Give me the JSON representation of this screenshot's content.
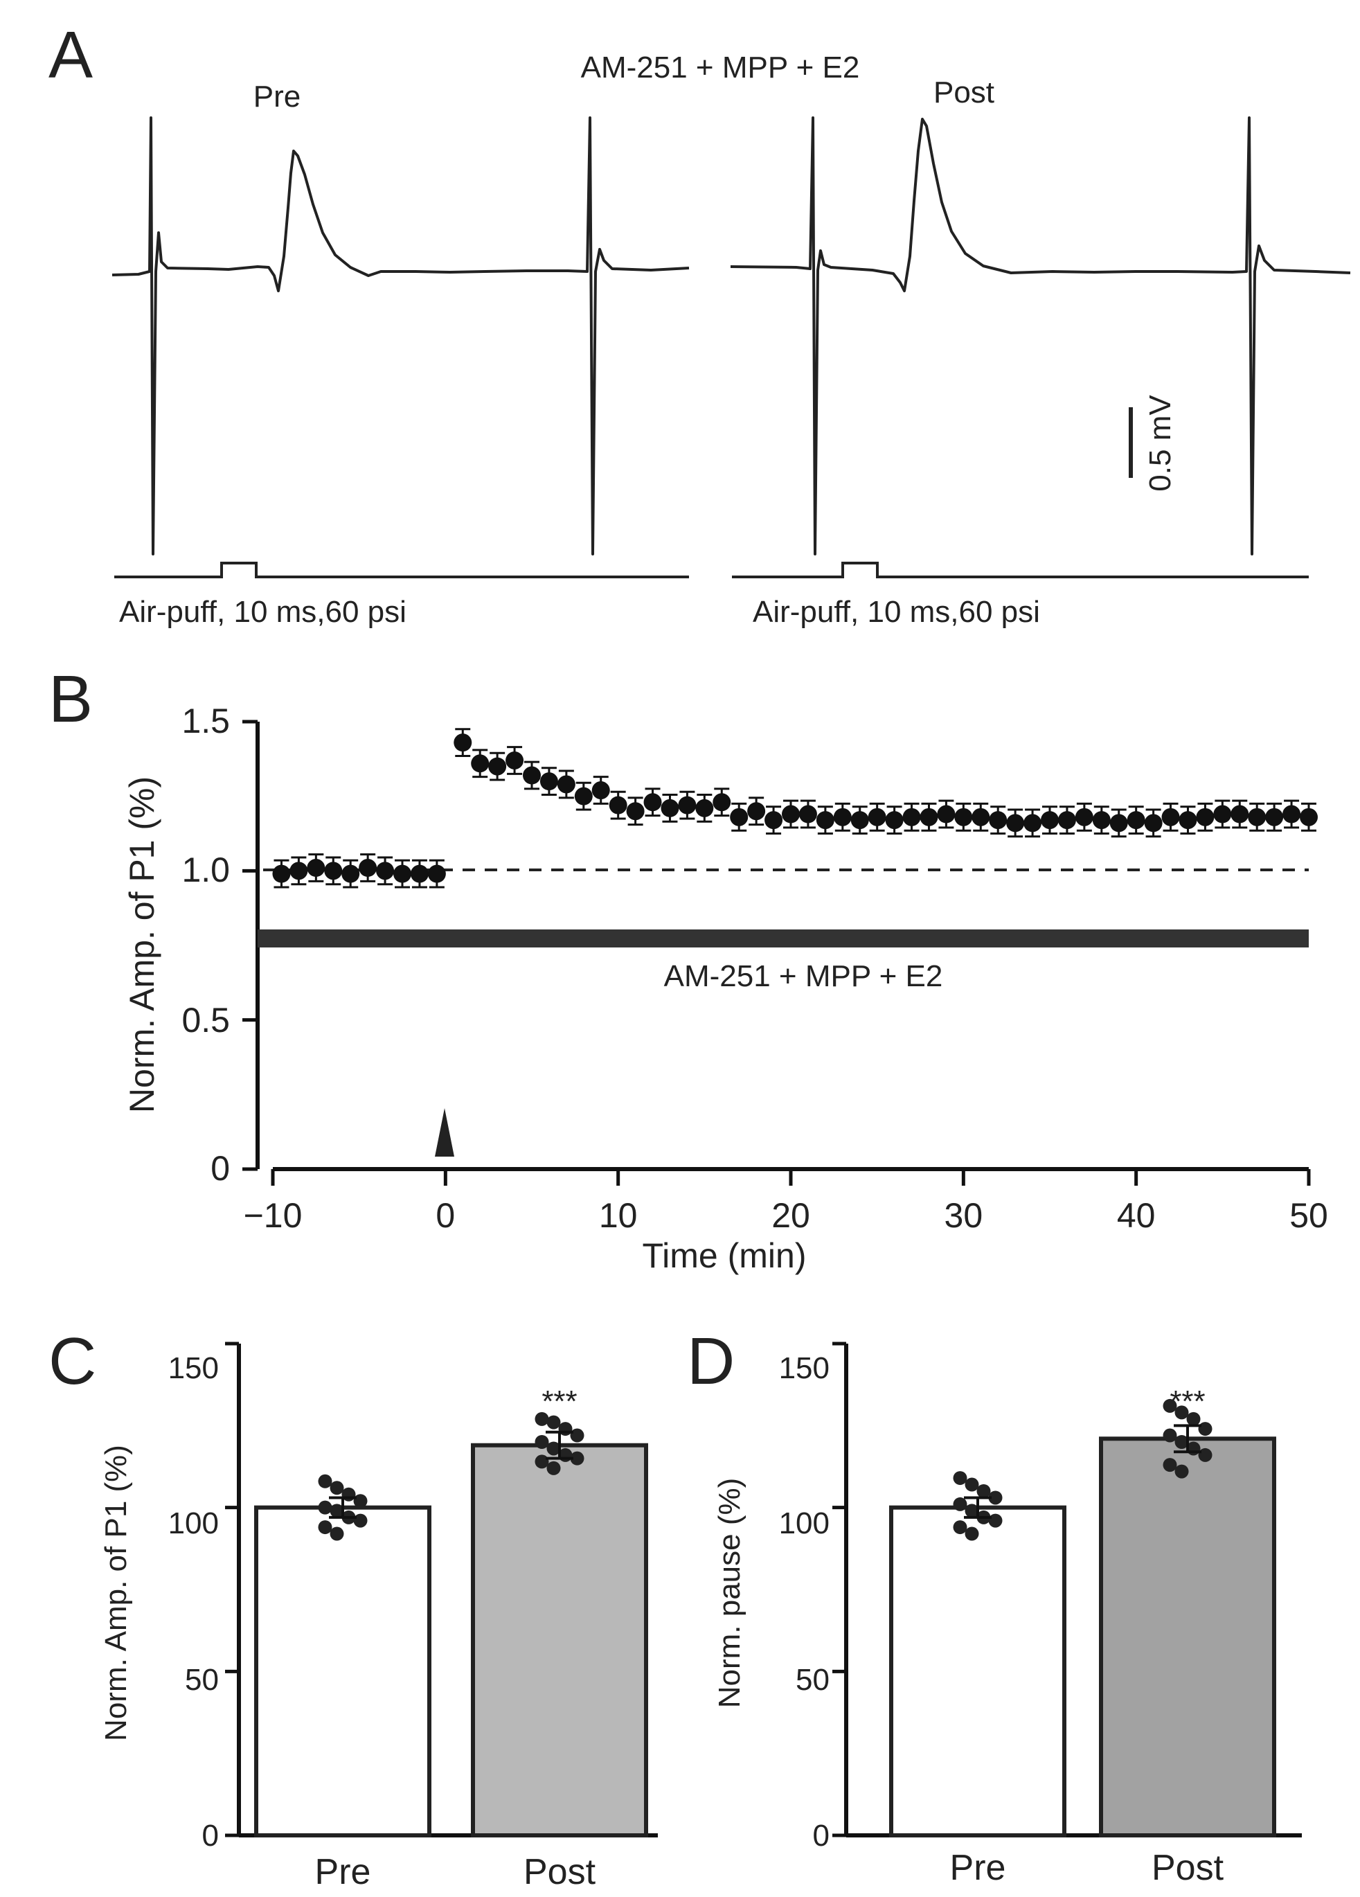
{
  "figure": {
    "panel_letters": [
      "A",
      "B",
      "C",
      "D"
    ]
  },
  "chart_data": [
    {
      "panel": "A",
      "type": "line",
      "title": "AM-251 + MPP + E2",
      "traces": [
        {
          "label": "Pre",
          "stimulus": "Air-puff, 10 ms,60 psi"
        },
        {
          "label": "Post",
          "stimulus": "Air-puff, 10 ms,60 psi"
        }
      ],
      "scale_bar": {
        "label": "0.5 mV",
        "value": 0.5,
        "unit": "mV"
      }
    },
    {
      "panel": "B",
      "type": "scatter",
      "xlabel": "Time (min)",
      "ylabel": "Norm. Amp. of P1 (%)",
      "xlim": [
        -10,
        50
      ],
      "ylim": [
        0,
        1.5
      ],
      "xticks": [
        -10,
        0,
        10,
        20,
        30,
        40,
        50
      ],
      "xtick_labels": [
        "−10",
        "0",
        "10",
        "20",
        "30",
        "40",
        "50"
      ],
      "yticks": [
        0,
        0.5,
        1.0,
        1.5
      ],
      "ytick_labels": [
        "0",
        "0.5",
        "1.0",
        "1.5"
      ],
      "reference_line": {
        "y": 1.0,
        "style": "dashed"
      },
      "drug_bar": {
        "label": "AM-251 + MPP + E2",
        "x_start": -10,
        "x_end": 50
      },
      "marker": {
        "x": 0,
        "label": "arrowhead"
      },
      "series": [
        {
          "name": "Norm. Amp. of P1",
          "x": [
            -9.5,
            -8.5,
            -7.5,
            -6.5,
            -5.5,
            -4.5,
            -3.5,
            -2.5,
            -1.5,
            -0.5,
            1,
            2,
            3,
            4,
            5,
            6,
            7,
            8,
            9,
            10,
            11,
            12,
            13,
            14,
            15,
            16,
            17,
            18,
            19,
            20,
            21,
            22,
            23,
            24,
            25,
            26,
            27,
            28,
            29,
            30,
            31,
            32,
            33,
            34,
            35,
            36,
            37,
            38,
            39,
            40,
            41,
            42,
            43,
            44,
            45,
            46,
            47,
            48,
            49,
            50
          ],
          "y": [
            0.99,
            1.0,
            1.01,
            1.0,
            0.99,
            1.01,
            1.0,
            0.99,
            0.99,
            0.99,
            1.43,
            1.36,
            1.35,
            1.37,
            1.32,
            1.3,
            1.29,
            1.25,
            1.27,
            1.22,
            1.2,
            1.23,
            1.21,
            1.22,
            1.21,
            1.23,
            1.18,
            1.2,
            1.17,
            1.19,
            1.19,
            1.17,
            1.18,
            1.17,
            1.18,
            1.17,
            1.18,
            1.18,
            1.19,
            1.18,
            1.18,
            1.17,
            1.16,
            1.16,
            1.17,
            1.17,
            1.18,
            1.17,
            1.16,
            1.17,
            1.16,
            1.18,
            1.17,
            1.18,
            1.19,
            1.19,
            1.18,
            1.18,
            1.19,
            1.18
          ],
          "err": 0.045
        }
      ]
    },
    {
      "panel": "C",
      "type": "bar",
      "categories": [
        "Pre",
        "Post"
      ],
      "values": [
        100,
        119
      ],
      "errors": [
        3,
        4
      ],
      "colors": [
        "#ffffff",
        "#b8b8b8"
      ],
      "ylabel": "Norm. Amp. of P1 (%)",
      "ylim": [
        0,
        150
      ],
      "yticks": [
        0,
        50,
        100,
        150
      ],
      "ytick_labels": [
        "0",
        "50",
        "100",
        "150"
      ],
      "significance": [
        "",
        "***"
      ],
      "points": [
        [
          108,
          106,
          104,
          102,
          100,
          99,
          97,
          96,
          94,
          92
        ],
        [
          127,
          126,
          124,
          122,
          120,
          118,
          116,
          115,
          114,
          112
        ]
      ]
    },
    {
      "panel": "D",
      "type": "bar",
      "categories": [
        "Pre",
        "Post"
      ],
      "values": [
        100,
        121
      ],
      "errors": [
        3,
        4
      ],
      "colors": [
        "#ffffff",
        "#a2a2a2"
      ],
      "ylabel": "Norm. pause (%)",
      "ylim": [
        0,
        150
      ],
      "yticks": [
        0,
        50,
        100,
        150
      ],
      "ytick_labels": [
        "0",
        "50",
        "100",
        "150"
      ],
      "significance": [
        "",
        "***"
      ],
      "points": [
        [
          109,
          107,
          105,
          103,
          101,
          99,
          97,
          96,
          94,
          92
        ],
        [
          131,
          129,
          127,
          124,
          122,
          120,
          118,
          116,
          113,
          111
        ]
      ]
    }
  ]
}
